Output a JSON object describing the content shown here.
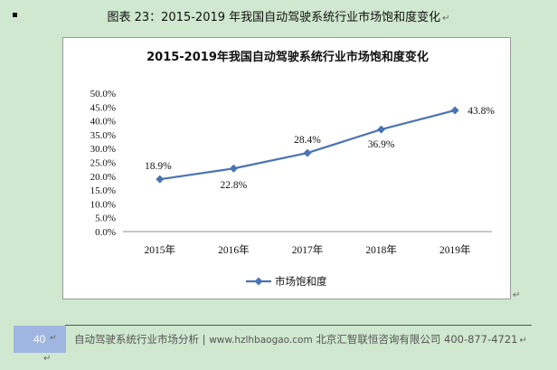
{
  "caption": {
    "text": "图表 23：2015-2019 年我国自动驾驶系统行业市场饱和度变化",
    "para_mark": "↵"
  },
  "chart_data": {
    "type": "line",
    "title": "2015-2019年我国自动驾驶系统行业市场饱和度变化",
    "categories": [
      "2015年",
      "2016年",
      "2017年",
      "2018年",
      "2019年"
    ],
    "series": [
      {
        "name": "市场饱和度",
        "values": [
          18.9,
          22.8,
          28.4,
          36.9,
          43.8
        ],
        "color": "#4a73b3"
      }
    ],
    "data_labels": [
      "18.9%",
      "22.8%",
      "28.4%",
      "36.9%",
      "43.8%"
    ],
    "yticks": [
      "0.0%",
      "5.0%",
      "10.0%",
      "15.0%",
      "20.0%",
      "25.0%",
      "30.0%",
      "35.0%",
      "40.0%",
      "45.0%",
      "50.0%"
    ],
    "ylim": [
      0,
      50
    ],
    "grid": false,
    "legend_position": "bottom",
    "marker": "diamond"
  },
  "footer": {
    "page_number": "40",
    "left_text": "自动驾驶系统行业市场分析 | ",
    "url": "www.hzlhbaogao.com",
    "company": " 北京汇智联恒咨询有限公司",
    "phone": "  400-877-4721",
    "para_mark": "↵"
  },
  "colors": {
    "page_background": "#cfe8cf",
    "series_line": "#4a73b3",
    "page_box": "#9fb6e0"
  }
}
